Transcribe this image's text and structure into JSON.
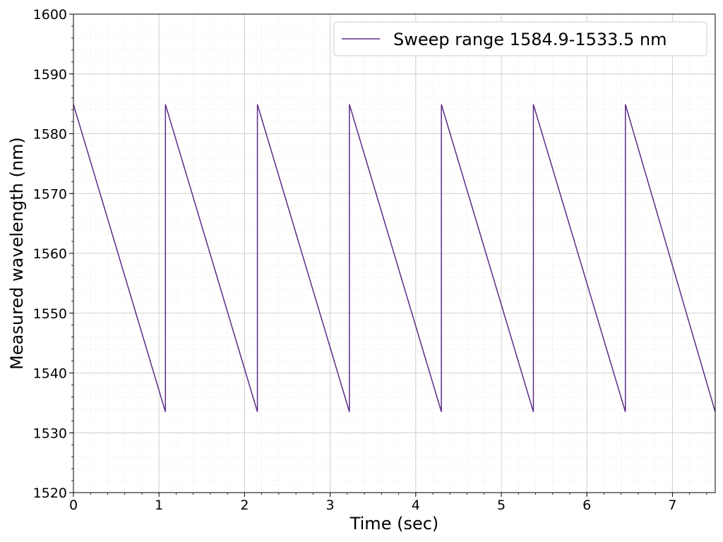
{
  "chart_data": {
    "type": "line",
    "title": "",
    "xlabel": "Time (sec)",
    "ylabel": "Measured wavelength (nm)",
    "xlim": [
      0,
      7.5
    ],
    "ylim": [
      1520,
      1600
    ],
    "xticks": [
      0,
      1,
      2,
      3,
      4,
      5,
      6,
      7
    ],
    "yticks": [
      1520,
      1530,
      1540,
      1550,
      1560,
      1570,
      1580,
      1590,
      1600
    ],
    "grid": true,
    "minor_grid": true,
    "legend_position": "top-right",
    "series": [
      {
        "name": "Sweep range 1584.9-1533.5 nm",
        "color": "#5b2a86",
        "x": [
          0,
          1.075,
          1.075,
          2.15,
          2.15,
          3.225,
          3.225,
          4.3,
          4.3,
          5.375,
          5.375,
          6.45,
          6.45,
          7.5
        ],
        "y": [
          1584.9,
          1533.5,
          1584.9,
          1533.5,
          1584.9,
          1533.5,
          1584.9,
          1533.5,
          1584.9,
          1533.5,
          1584.9,
          1533.5,
          1584.9,
          1533.5
        ]
      }
    ]
  },
  "legend": {
    "label": "Sweep range 1584.9-1533.5 nm"
  }
}
